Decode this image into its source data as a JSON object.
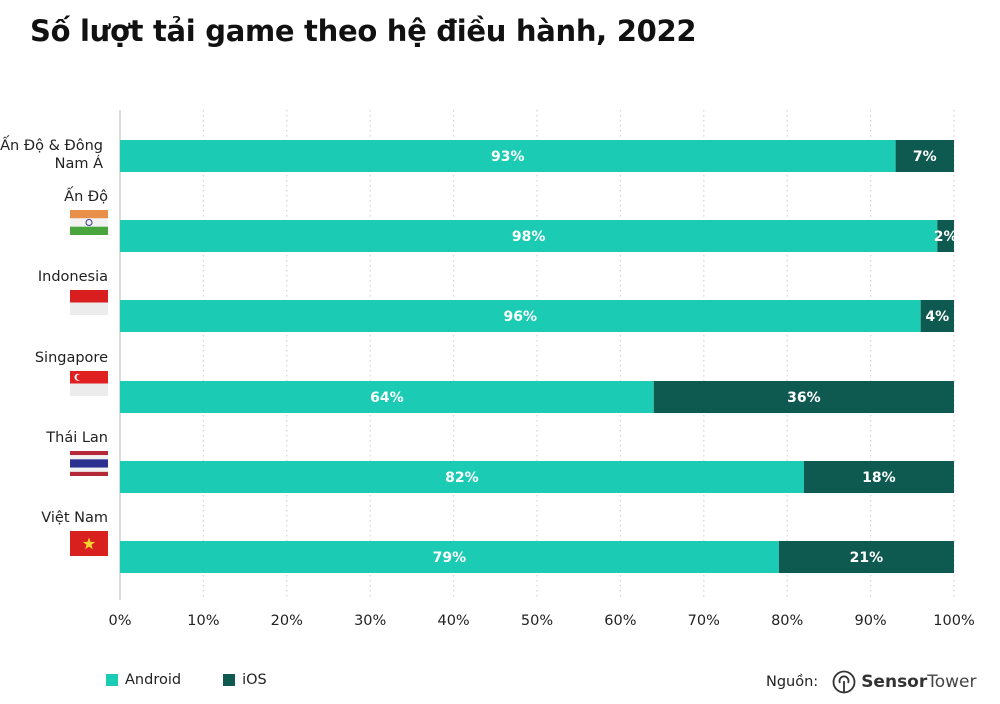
{
  "title": "Số lượt tải game theo hệ điều hành, 2022",
  "colors": {
    "android": "#1ccbb3",
    "ios": "#0f5a50",
    "grid": "#cfd3d6",
    "axis": "#d9dcde"
  },
  "legend": [
    {
      "name": "Android",
      "color": "#1ccbb3"
    },
    {
      "name": "iOS",
      "color": "#0f5a50"
    }
  ],
  "source": {
    "label": "Nguồn:",
    "brand_bold": "Sensor",
    "brand_light": "Tower",
    "icon": "sensortower-logo-icon"
  },
  "chart_data": {
    "type": "bar",
    "orientation": "horizontal",
    "stacked": true,
    "title": "Số lượt tải game theo hệ điều hành, 2022",
    "xlabel": "",
    "ylabel": "",
    "xlim": [
      0,
      100
    ],
    "x_ticks": [
      "0%",
      "10%",
      "20%",
      "30%",
      "40%",
      "50%",
      "60%",
      "70%",
      "80%",
      "90%",
      "100%"
    ],
    "grid": "vertical-dotted",
    "legend_position": "bottom-left",
    "categories": [
      {
        "label_lines": [
          "Ấn Độ & Đông",
          "Nam Á"
        ],
        "flag": null
      },
      {
        "label_lines": [
          "Ấn Độ"
        ],
        "flag": "india"
      },
      {
        "label_lines": [
          "Indonesia"
        ],
        "flag": "indonesia"
      },
      {
        "label_lines": [
          "Singapore"
        ],
        "flag": "singapore"
      },
      {
        "label_lines": [
          "Thái Lan"
        ],
        "flag": "thailand"
      },
      {
        "label_lines": [
          "Việt Nam"
        ],
        "flag": "vietnam"
      }
    ],
    "series": [
      {
        "name": "Android",
        "values": [
          93,
          98,
          96,
          64,
          82,
          79
        ],
        "labels": [
          "93%",
          "98%",
          "96%",
          "64%",
          "82%",
          "79%"
        ]
      },
      {
        "name": "iOS",
        "values": [
          7,
          2,
          4,
          36,
          18,
          21
        ],
        "labels": [
          "7%",
          "2%",
          "4%",
          "36%",
          "18%",
          "21%"
        ]
      }
    ]
  }
}
